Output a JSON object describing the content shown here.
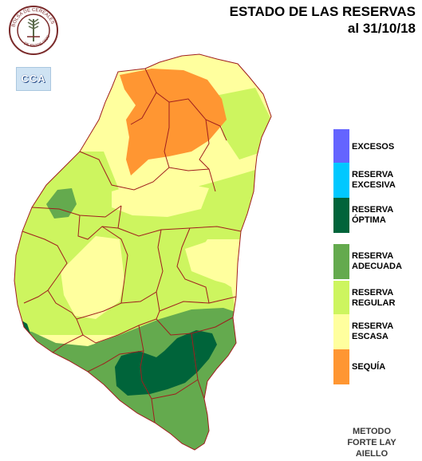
{
  "header": {
    "title": "ESTADO DE LAS RESERVAS",
    "date_label": "al 31/10/18"
  },
  "logos": {
    "seal_text": "BOLSA DE CEREALES DE ENTRE RIOS",
    "cca_text": "CCA"
  },
  "legend": {
    "items": [
      {
        "label": "EXCESOS",
        "color": "#6464ff"
      },
      {
        "label": "RESERVA\nEXCESIVA",
        "color": "#00c8ff"
      },
      {
        "label": "RESERVA\nÓPTIMA",
        "color": "#00643a"
      },
      {
        "label": "RESERVA\nADECUADA",
        "color": "#64aa4e"
      },
      {
        "label": "RESERVA\nREGULAR",
        "color": "#cdf55f"
      },
      {
        "label": "RESERVA\nESCASA",
        "color": "#ffff9e"
      },
      {
        "label": "SEQUÍA",
        "color": "#ff9632"
      }
    ]
  },
  "footer": {
    "method_note": "METODO\nFORTE LAY\nAIELLO"
  },
  "map": {
    "colors": {
      "boundary": "#a01e1e",
      "sequia": "#ff9632",
      "escasa": "#ffff9e",
      "regular": "#cdf55f",
      "adecuada": "#64aa4e",
      "optima": "#00643a"
    }
  }
}
